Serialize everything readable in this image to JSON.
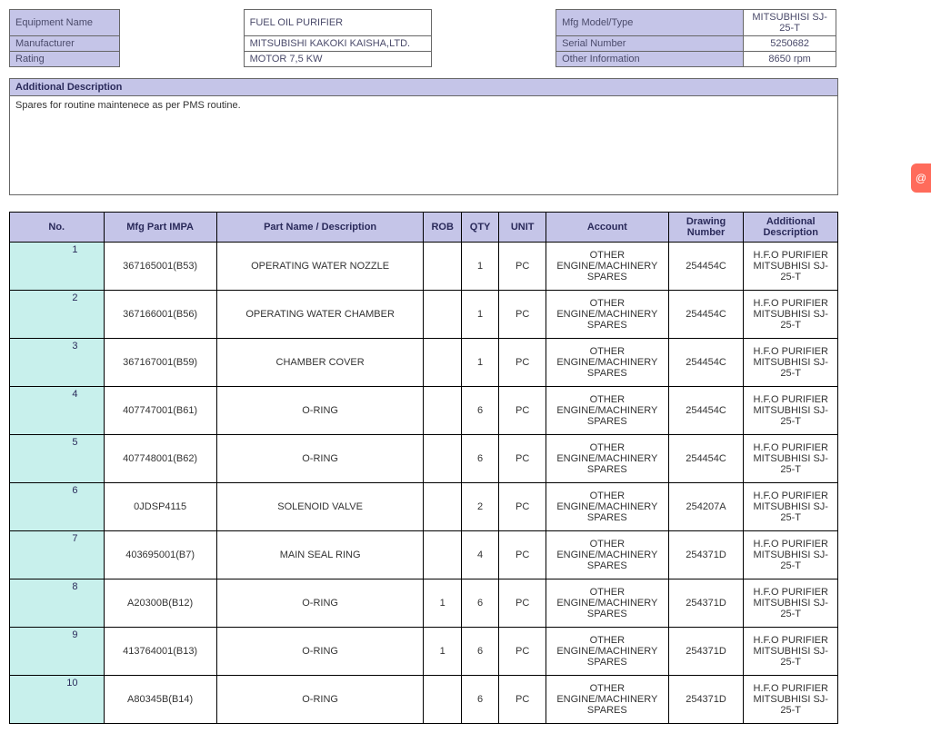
{
  "info": {
    "labels": {
      "equipment": "Equipment Name",
      "manufacturer": "Manufacturer",
      "rating": "Rating",
      "mfg_model": "Mfg Model/Type",
      "serial": "Serial Number",
      "other": "Other Information"
    },
    "equipment": "FUEL OIL PURIFIER",
    "manufacturer": "MITSUBISHI KAKOKI KAISHA,LTD.",
    "rating": "MOTOR 7,5 KW",
    "mfg_model": "MITSUBHISI SJ-25-T",
    "serial": "5250682",
    "other": "8650 rpm"
  },
  "additional": {
    "title": "Additional Description",
    "text": "Spares for routine maintenece as per PMS routine."
  },
  "parts": {
    "headers": {
      "no": "No.",
      "mfg": "Mfg Part IMPA",
      "name": "Part Name / Description",
      "rob": "ROB",
      "qty": "QTY",
      "unit": "UNIT",
      "account": "Account",
      "drawing": "Drawing Number",
      "additional": "Additional Description"
    },
    "common": {
      "account": "OTHER ENGINE/MACHINERY SPARES",
      "add_desc": "H.F.O PURIFIER MITSUBHISI SJ-25-T",
      "unit": "PC"
    },
    "rows": [
      {
        "no": "1",
        "mfg": "367165001(B53)",
        "name": "OPERATING WATER NOZZLE",
        "rob": "",
        "qty": "1",
        "drawing": "254454C"
      },
      {
        "no": "2",
        "mfg": "367166001(B56)",
        "name": "OPERATING WATER CHAMBER",
        "rob": "",
        "qty": "1",
        "drawing": "254454C"
      },
      {
        "no": "3",
        "mfg": "367167001(B59)",
        "name": "CHAMBER COVER",
        "rob": "",
        "qty": "1",
        "drawing": "254454C"
      },
      {
        "no": "4",
        "mfg": "407747001(B61)",
        "name": "O-RING",
        "rob": "",
        "qty": "6",
        "drawing": "254454C"
      },
      {
        "no": "5",
        "mfg": "407748001(B62)",
        "name": "O-RING",
        "rob": "",
        "qty": "6",
        "drawing": "254454C"
      },
      {
        "no": "6",
        "mfg": "0JDSP4115",
        "name": "SOLENOID VALVE",
        "rob": "",
        "qty": "2",
        "drawing": "254207A"
      },
      {
        "no": "7",
        "mfg": "403695001(B7)",
        "name": "MAIN SEAL RING",
        "rob": "",
        "qty": "4",
        "drawing": "254371D"
      },
      {
        "no": "8",
        "mfg": "A20300B(B12)",
        "name": "O-RING",
        "rob": "1",
        "qty": "6",
        "drawing": "254371D"
      },
      {
        "no": "9",
        "mfg": "413764001(B13)",
        "name": "O-RING",
        "rob": "1",
        "qty": "6",
        "drawing": "254371D"
      },
      {
        "no": "10",
        "mfg": "A80345B(B14)",
        "name": "O-RING",
        "rob": "",
        "qty": "6",
        "drawing": "254371D"
      }
    ]
  },
  "side_tab": "@"
}
